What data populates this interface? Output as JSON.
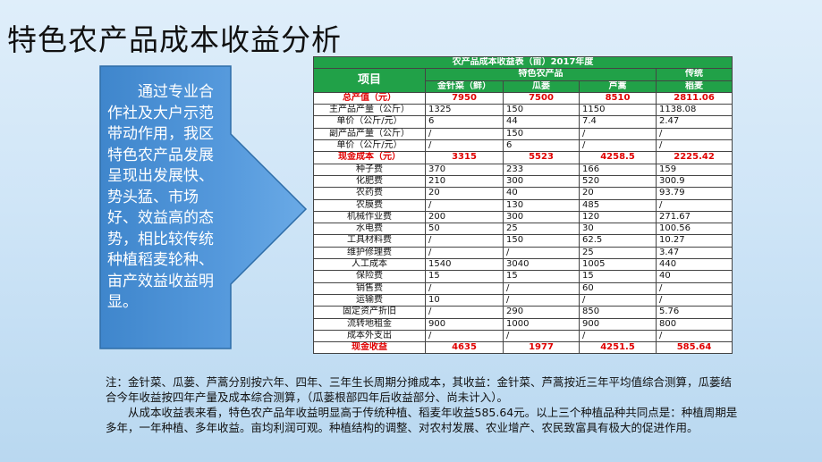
{
  "slide": {
    "title": "特色农产品成本收益分析",
    "arrow_text": "通过专业合作社及大户示范带动作用，我区特色农产品发展呈现出发展快、势头猛、市场好、效益高的态势，相比较传统种植稻麦轮种、亩产效益收益明显。",
    "colors": {
      "table_header": "#21a148",
      "highlight_text": "#e00000",
      "arrow_fill": "#4a8ed1"
    }
  },
  "table": {
    "caption": "农产品成本收益表（亩）2017年度",
    "item_header": "项目",
    "group_special": "特色农产品",
    "group_traditional": "传统",
    "columns": [
      "金针菜（鲜）",
      "瓜蒌",
      "芦蒿",
      "稻麦"
    ],
    "rows": [
      {
        "label": "总产值（元）",
        "values": [
          "7950",
          "7500",
          "8510",
          "2811.06"
        ],
        "highlight": true
      },
      {
        "label": "主产品产量（公斤）",
        "values": [
          "1325",
          "150",
          "1150",
          "1138.08"
        ]
      },
      {
        "label": "单价（公斤/元）",
        "values": [
          "6",
          "44",
          "7.4",
          "2.47"
        ]
      },
      {
        "label": "副产品产量（公斤）",
        "values": [
          "/",
          "150",
          "/",
          "/"
        ]
      },
      {
        "label": "单价（公斤/元）",
        "values": [
          "/",
          "6",
          "/",
          "/"
        ]
      },
      {
        "label": "现金成本（元）",
        "values": [
          "3315",
          "5523",
          "4258.5",
          "2225.42"
        ],
        "highlight": true
      },
      {
        "label": "种子费",
        "values": [
          "370",
          "233",
          "166",
          "159"
        ]
      },
      {
        "label": "化肥费",
        "values": [
          "210",
          "300",
          "520",
          "300.9"
        ]
      },
      {
        "label": "农药费",
        "values": [
          "20",
          "40",
          "20",
          "93.79"
        ]
      },
      {
        "label": "农膜费",
        "values": [
          "/",
          "130",
          "485",
          "/"
        ]
      },
      {
        "label": "机械作业费",
        "values": [
          "200",
          "300",
          "120",
          "271.67"
        ]
      },
      {
        "label": "水电费",
        "values": [
          "50",
          "25",
          "30",
          "100.56"
        ]
      },
      {
        "label": "工具材料费",
        "values": [
          "/",
          "150",
          "62.5",
          "10.27"
        ]
      },
      {
        "label": "维护修理费",
        "values": [
          "/",
          "/",
          "25",
          "3.47"
        ]
      },
      {
        "label": "人工成本",
        "values": [
          "1540",
          "3040",
          "1005",
          "440"
        ]
      },
      {
        "label": "保险费",
        "values": [
          "15",
          "15",
          "15",
          "40"
        ]
      },
      {
        "label": "销售费",
        "values": [
          "/",
          "/",
          "60",
          "/"
        ]
      },
      {
        "label": "运输费",
        "values": [
          "10",
          "/",
          "/",
          "/"
        ]
      },
      {
        "label": "固定资产折旧",
        "values": [
          "/",
          "290",
          "850",
          "5.76"
        ]
      },
      {
        "label": "流转地租金",
        "values": [
          "900",
          "1000",
          "900",
          "800"
        ]
      },
      {
        "label": "成本外支出",
        "values": [
          "/",
          "/",
          "/",
          "/"
        ]
      },
      {
        "label": "现金收益",
        "values": [
          "4635",
          "1977",
          "4251.5",
          "585.64"
        ],
        "highlight": true
      }
    ]
  },
  "footer": {
    "note": "注：金针菜、瓜蒌、芦蒿分别按六年、四年、三年生长周期分摊成本，其收益：金针菜、芦蒿按近三年平均值综合测算，瓜蒌结合今年收益按四年产量及成本综合测算，（瓜蒌根部四年后收益部分、尚未计入）。",
    "conclusion": "从成本收益表来看，特色农产品年收益明显高于传统种植、稻麦年收益585.64元。以上三个种植品种共同点是：种植周期是多年，一年种植、多年收益。亩均利润可观。种植结构的调整、对农村发展、农业增产、农民致富具有极大的促进作用。"
  }
}
